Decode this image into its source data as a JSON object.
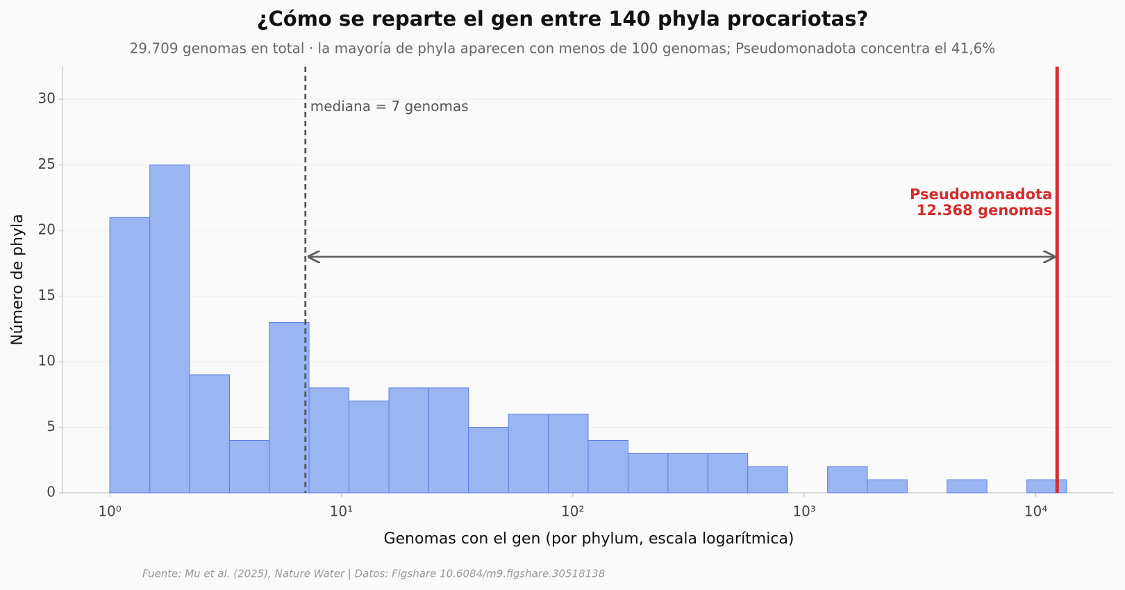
{
  "chart_data": {
    "type": "histogram",
    "title": "¿Cómo se reparte el gen entre 140 phyla procariotas?",
    "subtitle": "29.709 genomas en total · la mayoría de phyla aparecen con menos de 100 genomas; Pseudomonadota concentra el 41,6%",
    "x_label": "Genomas con el gen (por phylum, escala logarítmica)",
    "y_label": "Número de phyla",
    "source": "Fuente: Mu et al. (2025), Nature Water | Datos: Figshare 10.6084/m9.figshare.30518138",
    "bins": [
      1,
      1.49,
      2.21,
      3.29,
      4.89,
      7.26,
      10.8,
      16.06,
      23.87,
      35.48,
      52.77,
      78.45,
      116.6,
      173.4,
      257.8,
      383.3,
      569.9,
      847.3,
      1260,
      1873,
      2784,
      4140,
      6155,
      9151,
      13605
    ],
    "values": [
      21,
      25,
      9,
      4,
      13,
      8,
      7,
      8,
      8,
      5,
      6,
      6,
      4,
      3,
      3,
      3,
      2,
      0,
      2,
      1,
      0,
      1,
      0,
      1
    ],
    "color": "#9bb5f3",
    "edge_color": "#5b7fe0",
    "x_log_scale": true,
    "xlim": [
      0.625,
      21600
    ],
    "xticks": [
      {
        "value": 1,
        "label": "10⁰"
      },
      {
        "value": 10,
        "label": "10¹"
      },
      {
        "value": 100,
        "label": "10²"
      },
      {
        "value": 1000,
        "label": "10³"
      },
      {
        "value": 10000,
        "label": "10⁴"
      }
    ],
    "ylim": [
      0,
      32.5
    ],
    "yticks": [
      0,
      5,
      10,
      15,
      20,
      25,
      30
    ],
    "grid": true,
    "median": {
      "value": 7,
      "label": "mediana = 7 genomas",
      "color": "#555555"
    },
    "highlight": {
      "value": 12368,
      "label": [
        "Pseudomonadota",
        "12.368 genomas"
      ],
      "color": "#d62c2c"
    },
    "arrow": {
      "from": 7,
      "to": 12368,
      "y": 18,
      "color": "#606060"
    }
  }
}
